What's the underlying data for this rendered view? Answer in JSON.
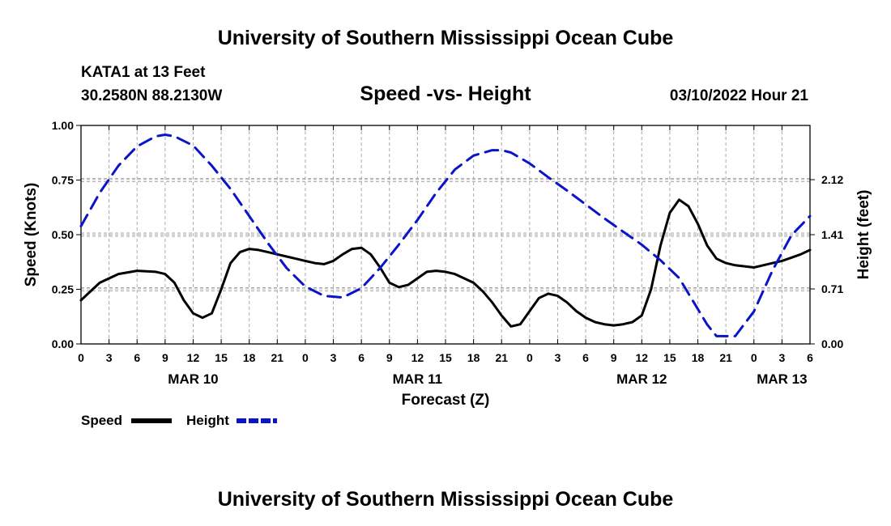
{
  "header": {
    "title": "University of Southern Mississippi Ocean Cube",
    "station": "KATA1 at 13 Feet",
    "coords": "30.2580N  88.2130W",
    "subtitle": "Speed -vs- Height",
    "datetime": "03/10/2022 Hour 21"
  },
  "footer": {
    "title": "University of Southern Mississippi Ocean Cube"
  },
  "legend": {
    "speed_label": "Speed",
    "height_label": "Height"
  },
  "colors": {
    "speed": "#000000",
    "height": "#0a14c8",
    "grid": "#aaaaaa"
  },
  "chart_data": {
    "type": "line",
    "title": "Speed -vs- Height",
    "xlabel": "Forecast (Z)",
    "ylabel": "Speed (Knots)",
    "y2label": "Height (feet)",
    "x_range_hours": [
      0,
      78
    ],
    "x_tick_labels": [
      "0",
      "3",
      "6",
      "9",
      "12",
      "15",
      "18",
      "21",
      "0",
      "3",
      "6",
      "9",
      "12",
      "15",
      "18",
      "21",
      "0",
      "3",
      "6",
      "9",
      "12",
      "15",
      "18",
      "21",
      "0",
      "3",
      "6"
    ],
    "day_labels": [
      {
        "label": "MAR 10",
        "hour": 12
      },
      {
        "label": "MAR 11",
        "hour": 36
      },
      {
        "label": "MAR 12",
        "hour": 60
      },
      {
        "label": "MAR 13",
        "hour": 75
      }
    ],
    "y_ticks": [
      "0.00",
      "0.25",
      "0.50",
      "0.75",
      "1.00"
    ],
    "ylim": [
      0,
      1
    ],
    "y2_ticks": [
      "0.00",
      "0.71",
      "1.41",
      "2.12"
    ],
    "y2lim": [
      0,
      2.82
    ],
    "series": [
      {
        "name": "Speed",
        "axis": "left",
        "style": "solid",
        "x": [
          0,
          2,
          4,
          6,
          8,
          9,
          10,
          11,
          12,
          13,
          14,
          15,
          16,
          17,
          18,
          19,
          20,
          21,
          22,
          23,
          24,
          25,
          26,
          27,
          28,
          29,
          30,
          31,
          32,
          33,
          34,
          35,
          36,
          37,
          38,
          39,
          40,
          41,
          42,
          43,
          44,
          45,
          46,
          47,
          48,
          49,
          50,
          51,
          52,
          53,
          54,
          55,
          56,
          57,
          58,
          59,
          60,
          61,
          62,
          63,
          64,
          65,
          66,
          67,
          68,
          69,
          70,
          71,
          72,
          73,
          74,
          75,
          76,
          77,
          78
        ],
        "values": [
          0.2,
          0.28,
          0.32,
          0.335,
          0.33,
          0.32,
          0.28,
          0.2,
          0.14,
          0.12,
          0.14,
          0.25,
          0.37,
          0.42,
          0.435,
          0.43,
          0.42,
          0.41,
          0.4,
          0.39,
          0.38,
          0.37,
          0.365,
          0.38,
          0.41,
          0.435,
          0.44,
          0.41,
          0.35,
          0.28,
          0.26,
          0.27,
          0.3,
          0.33,
          0.335,
          0.33,
          0.32,
          0.3,
          0.28,
          0.24,
          0.19,
          0.13,
          0.08,
          0.09,
          0.15,
          0.21,
          0.23,
          0.22,
          0.19,
          0.15,
          0.12,
          0.1,
          0.09,
          0.085,
          0.09,
          0.1,
          0.13,
          0.25,
          0.45,
          0.6,
          0.66,
          0.63,
          0.55,
          0.45,
          0.39,
          0.37,
          0.36,
          0.355,
          0.35,
          0.36,
          0.37,
          0.38,
          0.395,
          0.41,
          0.43
        ]
      },
      {
        "name": "Height",
        "axis": "right",
        "style": "dashed",
        "x": [
          0,
          2,
          4,
          6,
          8,
          9,
          10,
          12,
          14,
          16,
          18,
          20,
          22,
          24,
          26,
          28,
          30,
          32,
          34,
          36,
          38,
          40,
          42,
          44,
          45,
          46,
          48,
          50,
          52,
          54,
          56,
          58,
          60,
          62,
          64,
          66,
          67,
          68,
          70,
          72,
          74,
          76,
          78
        ],
        "values": [
          1.52,
          1.95,
          2.3,
          2.55,
          2.68,
          2.7,
          2.68,
          2.56,
          2.3,
          2.0,
          1.65,
          1.3,
          0.98,
          0.74,
          0.62,
          0.6,
          0.72,
          0.98,
          1.28,
          1.6,
          1.95,
          2.25,
          2.43,
          2.5,
          2.5,
          2.47,
          2.33,
          2.15,
          1.98,
          1.8,
          1.62,
          1.45,
          1.28,
          1.08,
          0.85,
          0.45,
          0.25,
          0.1,
          0.1,
          0.42,
          0.95,
          1.4,
          1.65
        ]
      }
    ]
  }
}
